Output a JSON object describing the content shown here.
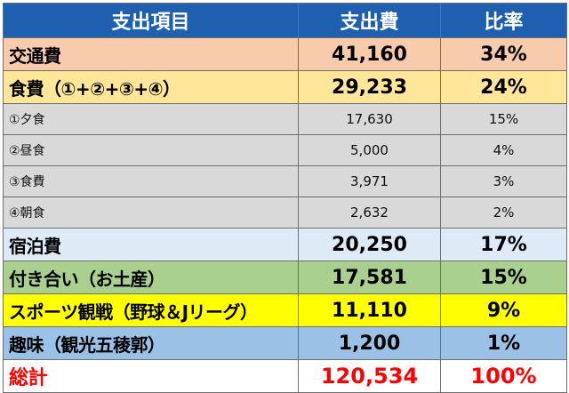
{
  "header": {
    "item": "支出項目",
    "expense": "支出費",
    "ratio": "比率"
  },
  "rows": [
    {
      "item": "交通費",
      "expense": "41,160",
      "ratio": "34%"
    },
    {
      "item": "食費（①+②+③+④）",
      "expense": "29,233",
      "ratio": "24%"
    },
    {
      "item": "①夕食",
      "expense": "17,630",
      "ratio": "15%"
    },
    {
      "item": "②昼食",
      "expense": "5,000",
      "ratio": "4%"
    },
    {
      "item": "③食費",
      "expense": "3,971",
      "ratio": "3%"
    },
    {
      "item": "④朝食",
      "expense": "2,632",
      "ratio": "2%"
    },
    {
      "item": "宿泊費",
      "expense": "20,250",
      "ratio": "17%"
    },
    {
      "item": "付き合い（お土産）",
      "expense": "17,581",
      "ratio": "15%"
    },
    {
      "item": "スポーツ観戦（野球＆Jリーグ）",
      "expense": "11,110",
      "ratio": "9%"
    },
    {
      "item": "趣味（観光五稜郭）",
      "expense": "1,200",
      "ratio": "1%"
    }
  ],
  "total": {
    "item": "総計",
    "expense": "120,534",
    "ratio": "100%"
  },
  "colors": {
    "header": "#1f5fb0",
    "transport": "#f8cbad",
    "food": "#ffe699",
    "sub": "#d9d9d9",
    "lodging": "#ddebf7",
    "social": "#a9d08e",
    "sports": "#ffff00",
    "hobby": "#9bc2e6",
    "total_text": "#ff0000"
  }
}
